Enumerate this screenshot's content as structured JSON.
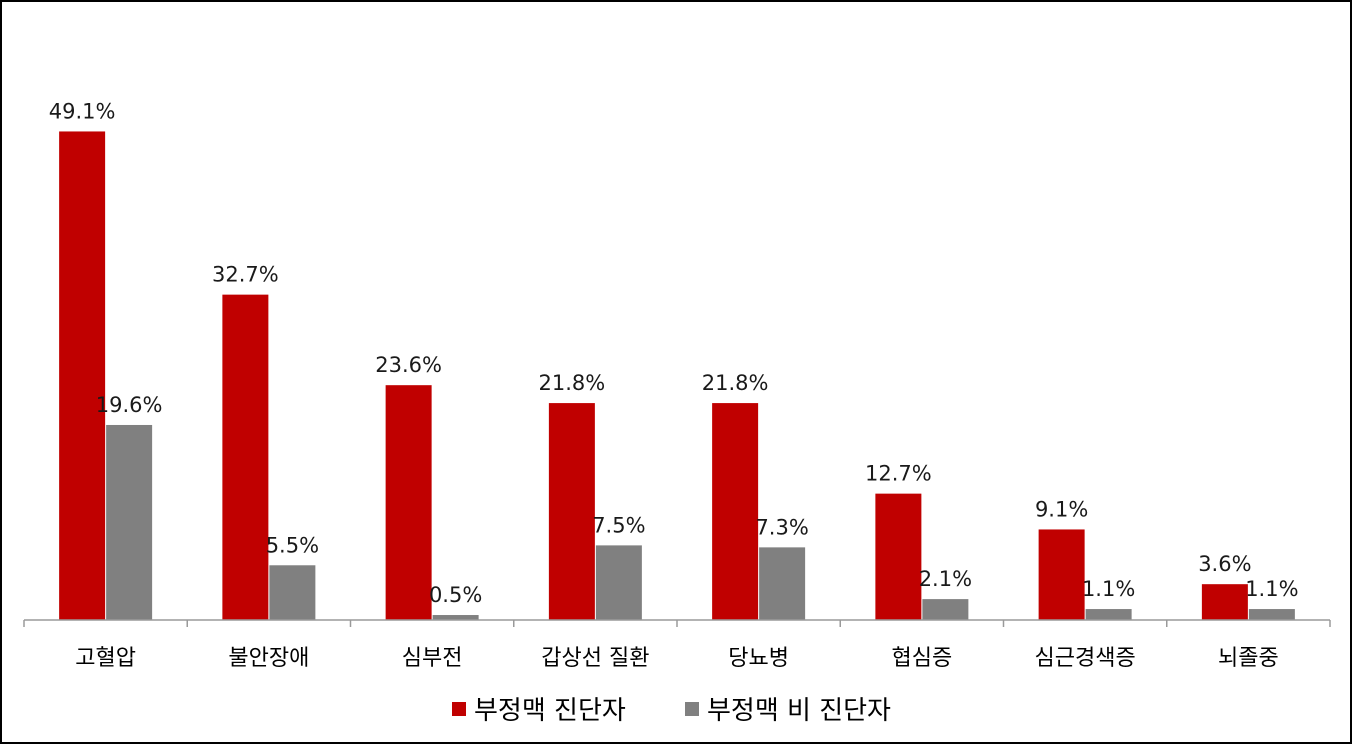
{
  "chart_data": {
    "type": "bar",
    "categories": [
      "고혈압",
      "불안장애",
      "심부전",
      "갑상선 질환",
      "당뇨병",
      "협심증",
      "심근경색증",
      "뇌졸중"
    ],
    "series": [
      {
        "name": "부정맥 진단자",
        "color": "#C00000",
        "values": [
          49.1,
          32.7,
          23.6,
          21.8,
          21.8,
          12.7,
          9.1,
          3.6
        ],
        "labels": [
          "49.1%",
          "32.7%",
          "23.6%",
          "21.8%",
          "21.8%",
          "12.7%",
          "9.1%",
          "3.6%"
        ]
      },
      {
        "name": "부정맥 비 진단자",
        "color": "#808080",
        "values": [
          19.6,
          5.5,
          0.5,
          7.5,
          7.3,
          2.1,
          1.1,
          1.1
        ],
        "labels": [
          "19.6%",
          "5.5%",
          "0.5%",
          "7.5%",
          "7.3%",
          "2.1%",
          "1.1%",
          "1.1%"
        ]
      }
    ],
    "title": "",
    "xlabel": "",
    "ylabel": "",
    "ylim": [
      0,
      55
    ],
    "grid": false,
    "legend": "bottom"
  }
}
